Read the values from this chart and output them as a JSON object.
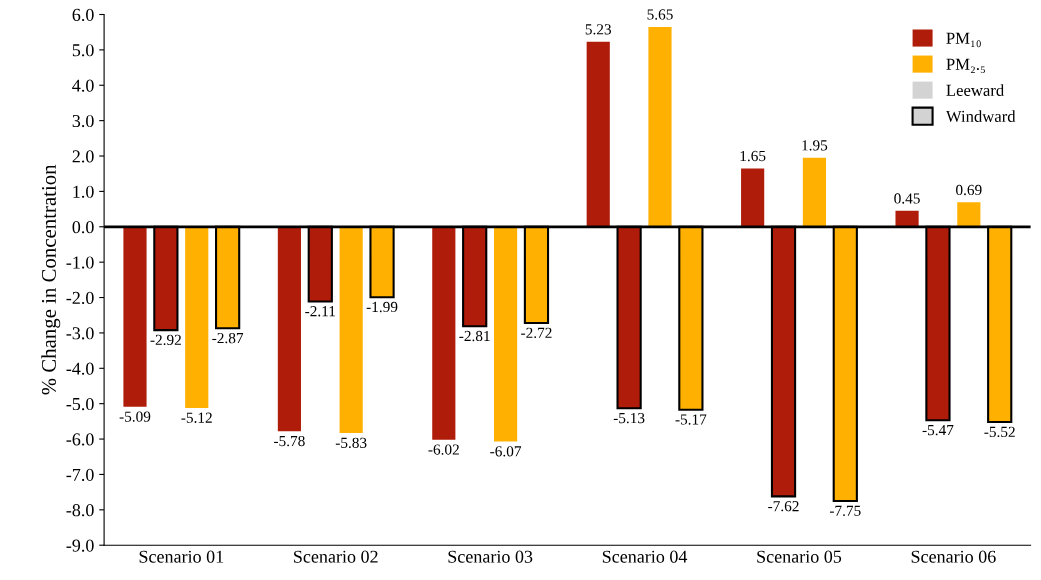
{
  "chart_data": {
    "type": "bar",
    "ylabel": "% Change in Concentration",
    "categories": [
      "Scenario 01",
      "Scenario 02",
      "Scenario 03",
      "Scenario 04",
      "Scenario 05",
      "Scenario 06"
    ],
    "series": [
      {
        "name": "PM₁₀",
        "color": "#b01c0a",
        "values": [
          -5.09,
          -5.78,
          -6.02,
          5.23,
          1.65,
          0.45
        ]
      },
      {
        "color": "#b01c0a",
        "line_style": "solid",
        "values": [
          -2.92,
          -2.11,
          -2.81,
          -5.13,
          -7.62,
          -5.47
        ]
      },
      {
        "name": "PM₂.₅",
        "color": "#ffb000",
        "values": [
          -5.12,
          -5.83,
          -6.07,
          5.65,
          1.95,
          0.69
        ]
      },
      {
        "color": "#ffb000",
        "line_style": "solid",
        "values": [
          -2.87,
          -1.99,
          -2.72,
          -5.17,
          -7.75,
          -5.52
        ]
      }
    ],
    "annotations": [
      "Leeward",
      "Windward"
    ],
    "ylim": [
      -9,
      6
    ],
    "yticks": [
      {
        "value": 6,
        "label": "6.0"
      },
      {
        "value": 5,
        "label": "5.0"
      },
      {
        "value": 4,
        "label": "4.0"
      },
      {
        "value": 3,
        "label": "3.0"
      },
      {
        "value": 2,
        "label": "2.0"
      },
      {
        "value": 1,
        "label": "1.0"
      },
      {
        "value": 0,
        "label": "0.0"
      },
      {
        "value": -1,
        "label": "-1.0"
      },
      {
        "value": -2,
        "label": "-2.0"
      },
      {
        "value": -3,
        "label": "-3.0"
      },
      {
        "value": -4,
        "label": "-4.0"
      },
      {
        "value": -5,
        "label": "-5.0"
      },
      {
        "value": -6,
        "label": "-6.0"
      },
      {
        "value": -7,
        "label": "-7.0"
      },
      {
        "value": -8,
        "label": "-8.0"
      },
      {
        "value": -9,
        "label": "-9.0"
      }
    ],
    "ref_lines": [
      {
        "axis": "y",
        "value": 0,
        "color": "#000000"
      }
    ],
    "data_labels": true,
    "legend": "top right",
    "grid": false
  }
}
